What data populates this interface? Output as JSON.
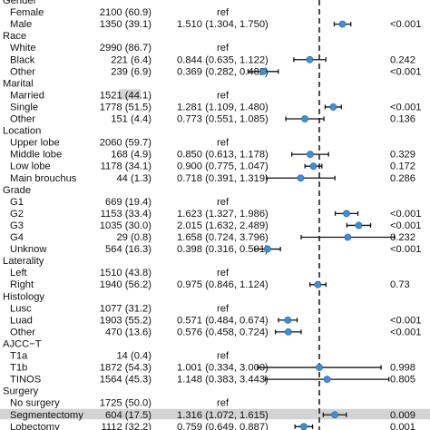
{
  "chart_data": {
    "type": "forest",
    "reference_value": 1,
    "rows": [
      {
        "kind": "group",
        "label": "Gender"
      },
      {
        "kind": "item",
        "label": "Female",
        "n": "2100 (60.9)",
        "hr": "ref",
        "p": ""
      },
      {
        "kind": "item",
        "label": "Male",
        "n": "1350 (39.1)",
        "hr": "1.510 (1.304, 1.750)",
        "p": "<0.001",
        "est": 1.51,
        "lo": 1.304,
        "hi": 1.75
      },
      {
        "kind": "group",
        "label": "Race"
      },
      {
        "kind": "item",
        "label": "White",
        "n": "2990 (86.7)",
        "hr": "ref",
        "p": ""
      },
      {
        "kind": "item",
        "label": "Black",
        "n": "221 (6.4)",
        "hr": "0.844 (0.635, 1.122)",
        "p": "0.242",
        "est": 0.844,
        "lo": 0.635,
        "hi": 1.122
      },
      {
        "kind": "item",
        "label": "Other",
        "n": "239 (6.9)",
        "hr": "0.369 (0.282, 0.482)",
        "p": "<0.001",
        "est": 0.369,
        "lo": 0.282,
        "hi": 0.482
      },
      {
        "kind": "group",
        "label": "Marital"
      },
      {
        "kind": "item",
        "label": "Married",
        "n": "1521 (44.1)",
        "hr": "ref",
        "p": ""
      },
      {
        "kind": "item",
        "label": "Single",
        "n": "1778 (51.5)",
        "hr": "1.281 (1.109, 1.480)",
        "p": "<0.001",
        "est": 1.281,
        "lo": 1.109,
        "hi": 1.48
      },
      {
        "kind": "item",
        "label": "Other",
        "n": "151 (4.4)",
        "hr": "0.773 (0.551, 1.085)",
        "p": "0.136",
        "est": 0.773,
        "lo": 0.551,
        "hi": 1.085
      },
      {
        "kind": "group",
        "label": "Location"
      },
      {
        "kind": "item",
        "label": "Upper lobe",
        "n": "2060 (59.7)",
        "hr": "ref",
        "p": ""
      },
      {
        "kind": "item",
        "label": "Middle lobe",
        "n": "168 (4.9)",
        "hr": "0.850 (0.613, 1.178)",
        "p": "0.329",
        "est": 0.85,
        "lo": 0.613,
        "hi": 1.178
      },
      {
        "kind": "item",
        "label": "Low lobe",
        "n": "1178 (34.1)",
        "hr": "0.900 (0.775, 1.047)",
        "p": "0.172",
        "est": 0.9,
        "lo": 0.775,
        "hi": 1.047
      },
      {
        "kind": "item",
        "label": "Main brouchus",
        "n": "44 (1.3)",
        "hr": "0.718 (0.391, 1.319)",
        "p": "0.286",
        "est": 0.718,
        "lo": 0.391,
        "hi": 1.319
      },
      {
        "kind": "group",
        "label": "Grade"
      },
      {
        "kind": "item",
        "label": "G1",
        "n": "669 (19.4)",
        "hr": "ref",
        "p": ""
      },
      {
        "kind": "item",
        "label": "G2",
        "n": "1153 (33.4)",
        "hr": "1.623 (1.327, 1.986)",
        "p": "<0.001",
        "est": 1.623,
        "lo": 1.327,
        "hi": 1.986
      },
      {
        "kind": "item",
        "label": "G3",
        "n": "1035 (30.0)",
        "hr": "2.015 (1.632, 2.489)",
        "p": "<0.001",
        "est": 2.015,
        "lo": 1.632,
        "hi": 2.489
      },
      {
        "kind": "item",
        "label": "G4",
        "n": "29 (0.8)",
        "hr": "1.658 (0.724, 3.796)",
        "p": "0.232",
        "est": 1.658,
        "lo": 0.724,
        "hi": 3.796
      },
      {
        "kind": "item",
        "label": "Unknow",
        "n": "564 (16.3)",
        "hr": "0.398 (0.316, 0.501)",
        "p": "<0.001",
        "est": 0.398,
        "lo": 0.316,
        "hi": 0.501
      },
      {
        "kind": "group",
        "label": "Laterality"
      },
      {
        "kind": "item",
        "label": "Left",
        "n": "1510 (43.8)",
        "hr": "ref",
        "p": ""
      },
      {
        "kind": "item",
        "label": "Right",
        "n": "1940 (56.2)",
        "hr": "0.975 (0.846, 1.124)",
        "p": "0.73",
        "est": 0.975,
        "lo": 0.846,
        "hi": 1.124
      },
      {
        "kind": "group",
        "label": "Histology"
      },
      {
        "kind": "item",
        "label": "Lusc",
        "n": "1077 (31.2)",
        "hr": "ref",
        "p": ""
      },
      {
        "kind": "item",
        "label": "Luad",
        "n": "1903 (55.2)",
        "hr": "0.571 (0.484, 0.674)",
        "p": "<0.001",
        "est": 0.571,
        "lo": 0.484,
        "hi": 0.674
      },
      {
        "kind": "item",
        "label": "Other",
        "n": "470 (13.6)",
        "hr": "0.576 (0.458, 0.724)",
        "p": "<0.001",
        "est": 0.576,
        "lo": 0.458,
        "hi": 0.724
      },
      {
        "kind": "group",
        "label": "AJCC−T"
      },
      {
        "kind": "item",
        "label": "T1a",
        "n": "14 (0.4)",
        "hr": "ref",
        "p": ""
      },
      {
        "kind": "item",
        "label": "T1b",
        "n": "1872 (54.3)",
        "hr": "1.001 (0.334, 3.000)",
        "p": "0.998",
        "est": 1.001,
        "lo": 0.334,
        "hi": 3.0
      },
      {
        "kind": "item",
        "label": "TINOS",
        "n": "1564 (45.3)",
        "hr": "1.148 (0.383, 3.443)",
        "p": "0.805",
        "est": 1.148,
        "lo": 0.383,
        "hi": 3.443
      },
      {
        "kind": "group",
        "label": "Surgery"
      },
      {
        "kind": "item",
        "label": "No surgery",
        "n": "1725 (50.0)",
        "hr": "ref",
        "p": ""
      },
      {
        "kind": "item",
        "label": "Segmentectomy",
        "n": "604 (17.5)",
        "hr": "1.316 (1.072, 1.615)",
        "p": "0.009",
        "est": 1.316,
        "lo": 1.072,
        "hi": 1.615
      },
      {
        "kind": "item",
        "label": "Lobectomy",
        "n": "1112 (32.2)",
        "hr": "0.759 (0.649, 0.887)",
        "p": "0.001",
        "est": 0.759,
        "lo": 0.649,
        "hi": 0.887
      }
    ],
    "colors": {
      "point": "#3d8fd8",
      "highlight": "#d3d3d3",
      "text": "#111111"
    }
  }
}
